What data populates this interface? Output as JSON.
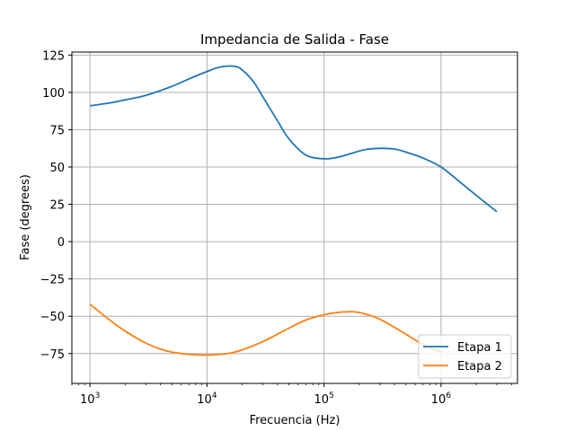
{
  "chart_data": {
    "type": "line",
    "title": "Impedancia de Salida - Fase",
    "xlabel": "Frecuencia (Hz)",
    "ylabel": "Fase (degrees)",
    "xscale": "log",
    "xlim": [
      700,
      4500000
    ],
    "ylim": [
      -95,
      127
    ],
    "grid": true,
    "legend_position": "lower-right",
    "x_tick_values": [
      1000,
      10000,
      100000,
      1000000
    ],
    "x_tick_labels": [
      {
        "base": "10",
        "exp": "3"
      },
      {
        "base": "10",
        "exp": "4"
      },
      {
        "base": "10",
        "exp": "5"
      },
      {
        "base": "10",
        "exp": "6"
      }
    ],
    "y_tick_values": [
      -75,
      -50,
      -25,
      0,
      25,
      50,
      75,
      100,
      125
    ],
    "y_tick_labels": [
      "−75",
      "−50",
      "−25",
      "0",
      "25",
      "50",
      "75",
      "100",
      "125"
    ],
    "series": [
      {
        "name": "Etapa 1",
        "color": "#1f77b4",
        "x": [
          1000,
          1500,
          2000,
          3000,
          5000,
          7000,
          10000,
          13000,
          17000,
          20000,
          25000,
          30000,
          40000,
          50000,
          70000,
          100000,
          130000,
          170000,
          220000,
          300000,
          400000,
          500000,
          700000,
          1000000,
          1500000,
          2000000,
          3000000
        ],
        "y": [
          91,
          93,
          95,
          98,
          104,
          109,
          114,
          117,
          117.5,
          115,
          107,
          97,
          81,
          69,
          58,
          55.5,
          56.5,
          59,
          61.5,
          62.5,
          62,
          60,
          56,
          50,
          39,
          31,
          20
        ]
      },
      {
        "name": "Etapa 2",
        "color": "#ff7f0e",
        "x": [
          1000,
          1500,
          2000,
          3000,
          4000,
          5000,
          7000,
          10000,
          15000,
          20000,
          30000,
          50000,
          70000,
          100000,
          130000,
          160000,
          200000,
          300000,
          500000,
          700000,
          1000000
        ],
        "y": [
          -42,
          -53,
          -60,
          -68,
          -72,
          -74,
          -75.5,
          -76,
          -75,
          -72.5,
          -67,
          -58,
          -52.5,
          -49,
          -47.5,
          -47,
          -47.5,
          -52,
          -62,
          -69,
          -74
        ]
      }
    ]
  }
}
